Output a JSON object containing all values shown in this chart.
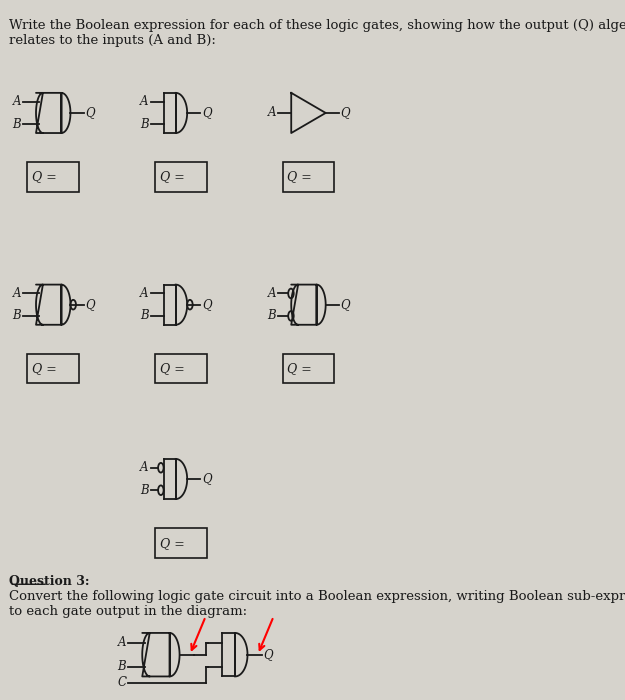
{
  "bg_color": "#d6d3cc",
  "text_color": "#1a1a1a",
  "title_text": "Write the Boolean expression for each of these logic gates, showing how the output (Q) algebraically\nrelates to the inputs (A and B):",
  "q3_label": "Question 3:",
  "q3_text": "Convert the following logic gate circuit into a Boolean expression, writing Boolean sub-expressions next\nto each gate output in the diagram:",
  "title_fontsize": 9.5,
  "label_fontsize": 9.0,
  "gate_label_fontsize": 8.5,
  "lw": 1.3
}
